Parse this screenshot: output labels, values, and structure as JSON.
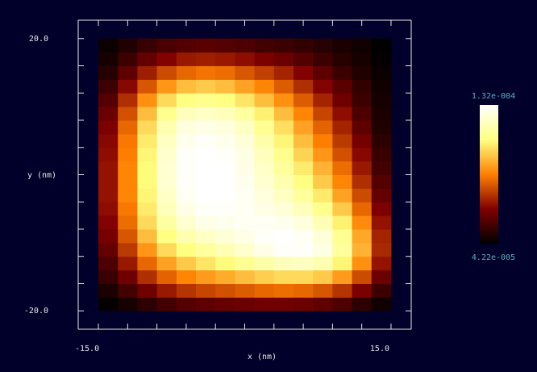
{
  "chart_data": {
    "type": "heatmap",
    "x_label": "x (nm)",
    "y_label": "y (nm)",
    "xlim": [
      -17.07,
      17.07
    ],
    "ylim": [
      -22.7,
      22.7
    ],
    "xticks": [
      {
        "value": -15,
        "label": "-15.0"
      },
      {
        "value": 15,
        "label": "15.0"
      }
    ],
    "yticks": [
      {
        "value": -20,
        "label": "-20.0"
      },
      {
        "value": 20,
        "label": "20.0"
      }
    ],
    "xminor_ticks": [
      -15,
      -12,
      -9,
      -6,
      -3,
      0,
      3,
      6,
      9,
      12,
      15
    ],
    "yminor_ticks": [
      -20,
      -16,
      -12,
      -8,
      -4,
      0,
      4,
      8,
      12,
      16,
      20
    ],
    "xbins": [
      -15,
      -13,
      -11,
      -9,
      -7,
      -5,
      -3,
      -1,
      1,
      3,
      5,
      7,
      9,
      11,
      13,
      15
    ],
    "ybins": [
      -20,
      -18,
      -16,
      -14,
      -12,
      -10,
      -8,
      -6,
      -4,
      -2,
      0,
      2,
      4,
      6,
      8,
      10,
      12,
      14,
      16,
      18,
      20
    ],
    "colormap": "afmhot",
    "zlim": [
      4.22e-05,
      0.000132
    ],
    "zticks": [
      {
        "value": 4.22e-05,
        "label": "4.22e-005"
      },
      {
        "value": 0.000132,
        "label": "1.32e-004"
      }
    ],
    "values": [
      [
        4.3e-05,
        4.6e-05,
        5e-05,
        5.4e-05,
        5.7e-05,
        5.9e-05,
        6e-05,
        6.1e-05,
        6.2e-05,
        6.2e-05,
        6.1e-05,
        5.9e-05,
        5.6e-05,
        5e-05,
        4.5e-05
      ],
      [
        4.7e-05,
        5.4e-05,
        6.2e-05,
        6.9e-05,
        7.4e-05,
        7.7e-05,
        7.9e-05,
        8.1e-05,
        8.3e-05,
        8.4e-05,
        8.3e-05,
        8e-05,
        7.4e-05,
        6.4e-05,
        5.3e-05
      ],
      [
        5.2e-05,
        6.2e-05,
        7.3e-05,
        8.2e-05,
        8.8e-05,
        9.2e-05,
        9.5e-05,
        9.8e-05,
        0.000101,
        0.000103,
        0.000103,
        0.0001,
        9.2e-05,
        7.8e-05,
        6.1e-05
      ],
      [
        5.6e-05,
        6.9e-05,
        8.3e-05,
        9.3e-05,
        0.0001,
        0.000105,
        0.000109,
        0.000113,
        0.000117,
        0.00012,
        0.000121,
        0.000118,
        0.000108,
        9e-05,
        6.8e-05
      ],
      [
        6e-05,
        7.5e-05,
        9.1e-05,
        0.000103,
        0.00011,
        0.000115,
        0.000119,
        0.000123,
        0.000128,
        0.000131,
        0.000131,
        0.000127,
        0.000115,
        9.6e-05,
        7.2e-05
      ],
      [
        6.3e-05,
        8e-05,
        9.8e-05,
        0.00011,
        0.000118,
        0.000122,
        0.000125,
        0.000128,
        0.000131,
        0.000132,
        0.00013,
        0.000125,
        0.000113,
        9.4e-05,
        7.1e-05
      ],
      [
        6.5e-05,
        8.4e-05,
        0.000103,
        0.000116,
        0.000124,
        0.000128,
        0.000129,
        0.00013,
        0.00013,
        0.000129,
        0.000126,
        0.000119,
        0.000107,
        8.9e-05,
        6.8e-05
      ],
      [
        6.7e-05,
        8.6e-05,
        0.000106,
        0.00012,
        0.000128,
        0.000131,
        0.000131,
        0.00013,
        0.000128,
        0.000125,
        0.00012,
        0.000112,
        0.0001,
        8.3e-05,
        6.4e-05
      ],
      [
        6.8e-05,
        8.8e-05,
        0.000108,
        0.000122,
        0.00013,
        0.000132,
        0.000132,
        0.00013,
        0.000126,
        0.000121,
        0.000115,
        0.000106,
        9.3e-05,
        7.8e-05,
        6e-05
      ],
      [
        6.8e-05,
        8.8e-05,
        0.000109,
        0.000124,
        0.000131,
        0.000132,
        0.000132,
        0.000129,
        0.000124,
        0.000118,
        0.00011,
        0.0001,
        8.8e-05,
        7.3e-05,
        5.7e-05
      ],
      [
        6.8e-05,
        8.8e-05,
        0.000109,
        0.000124,
        0.000131,
        0.000132,
        0.000132,
        0.000128,
        0.000122,
        0.000115,
        0.000106,
        9.6e-05,
        8.4e-05,
        6.9e-05,
        5.4e-05
      ],
      [
        6.7e-05,
        8.7e-05,
        0.000108,
        0.000123,
        0.000131,
        0.000132,
        0.000131,
        0.000127,
        0.00012,
        0.000112,
        0.000102,
        9.1e-05,
        7.9e-05,
        6.6e-05,
        5.2e-05
      ],
      [
        6.6e-05,
        8.6e-05,
        0.000106,
        0.000121,
        0.000129,
        0.000131,
        0.000129,
        0.000125,
        0.000117,
        0.000108,
        9.8e-05,
        8.7e-05,
        7.5e-05,
        6.3e-05,
        5e-05
      ],
      [
        6.4e-05,
        8.3e-05,
        0.000103,
        0.000118,
        0.000126,
        0.000128,
        0.000126,
        0.000121,
        0.000113,
        0.000104,
        9.3e-05,
        8.2e-05,
        7.1e-05,
        5.9e-05,
        4.8e-05
      ],
      [
        6.1e-05,
        7.9e-05,
        9.8e-05,
        0.000112,
        0.00012,
        0.000122,
        0.00012,
        0.000115,
        0.000107,
        9.8e-05,
        8.8e-05,
        7.7e-05,
        6.7e-05,
        5.6e-05,
        4.7e-05
      ],
      [
        5.7e-05,
        7.3e-05,
        9e-05,
        0.000103,
        0.00011,
        0.000112,
        0.00011,
        0.000105,
        9.8e-05,
        9e-05,
        8.1e-05,
        7.1e-05,
        6.2e-05,
        5.3e-05,
        4.6e-05
      ],
      [
        5.3e-05,
        6.6e-05,
        8e-05,
        9.1e-05,
        9.8e-05,
        0.0001,
        9.8e-05,
        9.3e-05,
        8.8e-05,
        8.1e-05,
        7.3e-05,
        6.5e-05,
        5.8e-05,
        5.1e-05,
        4.5e-05
      ],
      [
        4.9e-05,
        5.9e-05,
        7e-05,
        7.8e-05,
        8.3e-05,
        8.5e-05,
        8.4e-05,
        8e-05,
        7.6e-05,
        7.1e-05,
        6.5e-05,
        5.9e-05,
        5.3e-05,
        4.8e-05,
        4.4e-05
      ],
      [
        4.6e-05,
        5.3e-05,
        6e-05,
        6.5e-05,
        6.9e-05,
        7e-05,
        6.9e-05,
        6.7e-05,
        6.4e-05,
        6.1e-05,
        5.7e-05,
        5.3e-05,
        4.9e-05,
        4.6e-05,
        4.3e-05
      ],
      [
        4.4e-05,
        4.8e-05,
        5.2e-05,
        5.5e-05,
        5.7e-05,
        5.8e-05,
        5.7e-05,
        5.6e-05,
        5.4e-05,
        5.3e-05,
        5.1e-05,
        4.9e-05,
        4.7e-05,
        4.5e-05,
        4.22e-05
      ]
    ]
  }
}
